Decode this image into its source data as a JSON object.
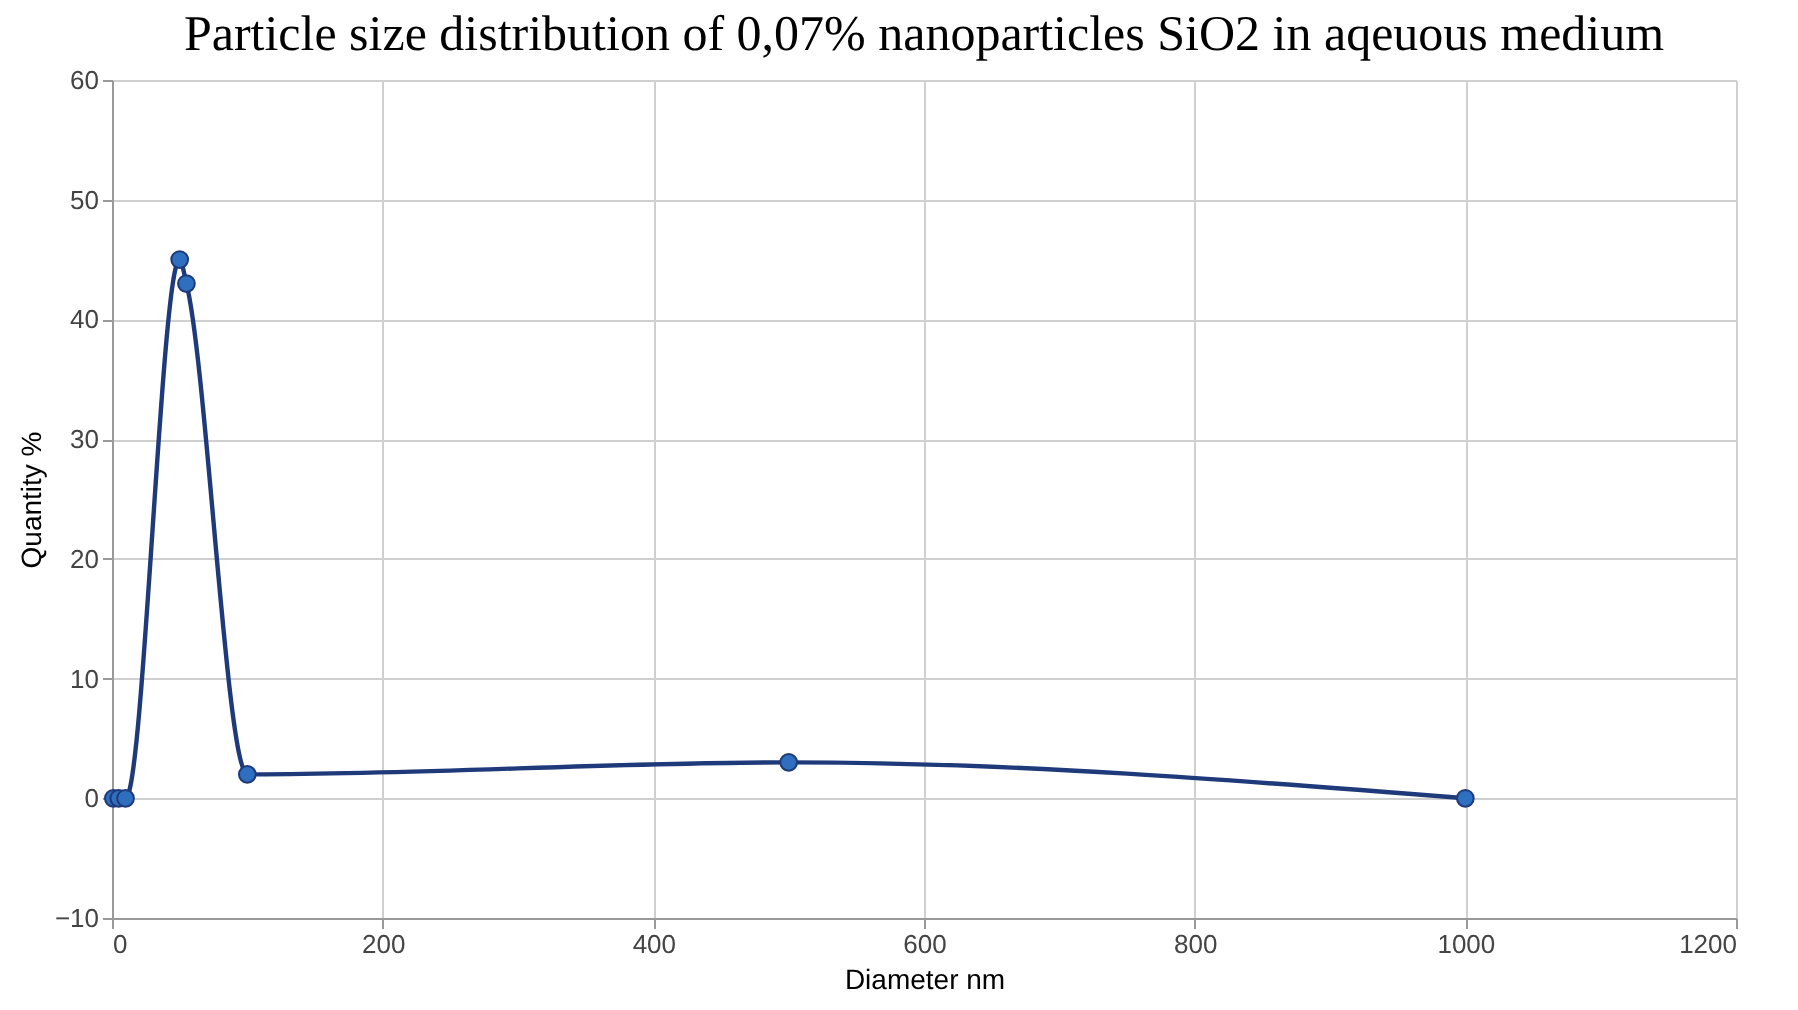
{
  "chart_data": {
    "type": "line",
    "title": "Particle size distribution of 0,07% nanoparticles SiO2 in aqeuous medium",
    "xlabel": "Diameter nm",
    "ylabel": "Quantity %",
    "x": [
      1,
      5,
      10,
      50,
      55,
      100,
      500,
      1000
    ],
    "series": [
      {
        "color": "#1f3a7a",
        "values": [
          0,
          0,
          0,
          45,
          43,
          2,
          3,
          0
        ]
      }
    ],
    "xlim": [
      0,
      1200
    ],
    "xticks": [
      0,
      200,
      400,
      600,
      800,
      1000,
      1200
    ],
    "ylim": [
      -10,
      60
    ],
    "yticks": [
      -10,
      0,
      10,
      20,
      30,
      40,
      50,
      60
    ],
    "grid": true,
    "marker": "circle",
    "line_style": "solid"
  }
}
